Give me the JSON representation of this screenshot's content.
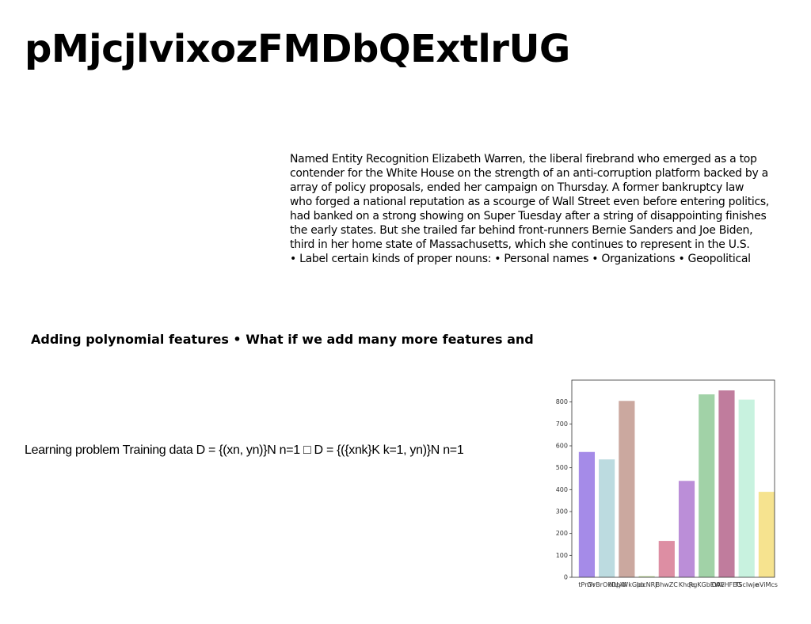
{
  "page": {
    "title": "pMjcjlvixozFMDbQExtlrUG",
    "paragraph_lines": [
      "Named Entity Recognition Elizabeth Warren, the liberal firebrand who emerged as a top",
      "contender for the White House on the strength of an anti-corruption platform backed by a",
      "array of policy proposals, ended her campaign on Thursday. A former bankruptcy law",
      "who forged a national reputation as a scourge of Wall Street even before entering politics,",
      "had banked on a strong showing on Super Tuesday after a string of disappointing finishes",
      "the early states. But she trailed far behind front-runners Bernie Sanders and Joe Biden,",
      "third in her home state of Massachusetts, which she continues to represent in the U.S.",
      "• Label certain kinds of proper nouns: • Personal names • Organizations • Geopolitical"
    ],
    "heading2": "Adding polynomial features • What if we add many more features and",
    "learning_text": "Learning problem Training data D = {(xn, yn)}N n=1 □ D = {({xnk}K k=1, yn)}N n=1"
  },
  "chart_data": {
    "type": "bar",
    "categories": [
      "tPnYr",
      "GvBrOkDpW",
      "NUyWkGpo",
      "IdcNRj",
      "BhwZC",
      "Khqe",
      "RgKGbEWE",
      "OAvHFEG",
      "TScIwje",
      "nViMcs"
    ],
    "values": [
      572,
      538,
      805,
      5,
      166,
      440,
      835,
      853,
      811,
      390
    ],
    "colors": [
      "#a58be8",
      "#bcdbe0",
      "#cba89f",
      "#bfd99a",
      "#dd8ea3",
      "#bb8ed8",
      "#a1d2a7",
      "#c07c9d",
      "#c8f2df",
      "#f6e38f"
    ],
    "yticks": [
      0,
      100,
      200,
      300,
      400,
      500,
      600,
      700,
      800
    ],
    "ylim": [
      0,
      900
    ],
    "grid": false
  }
}
